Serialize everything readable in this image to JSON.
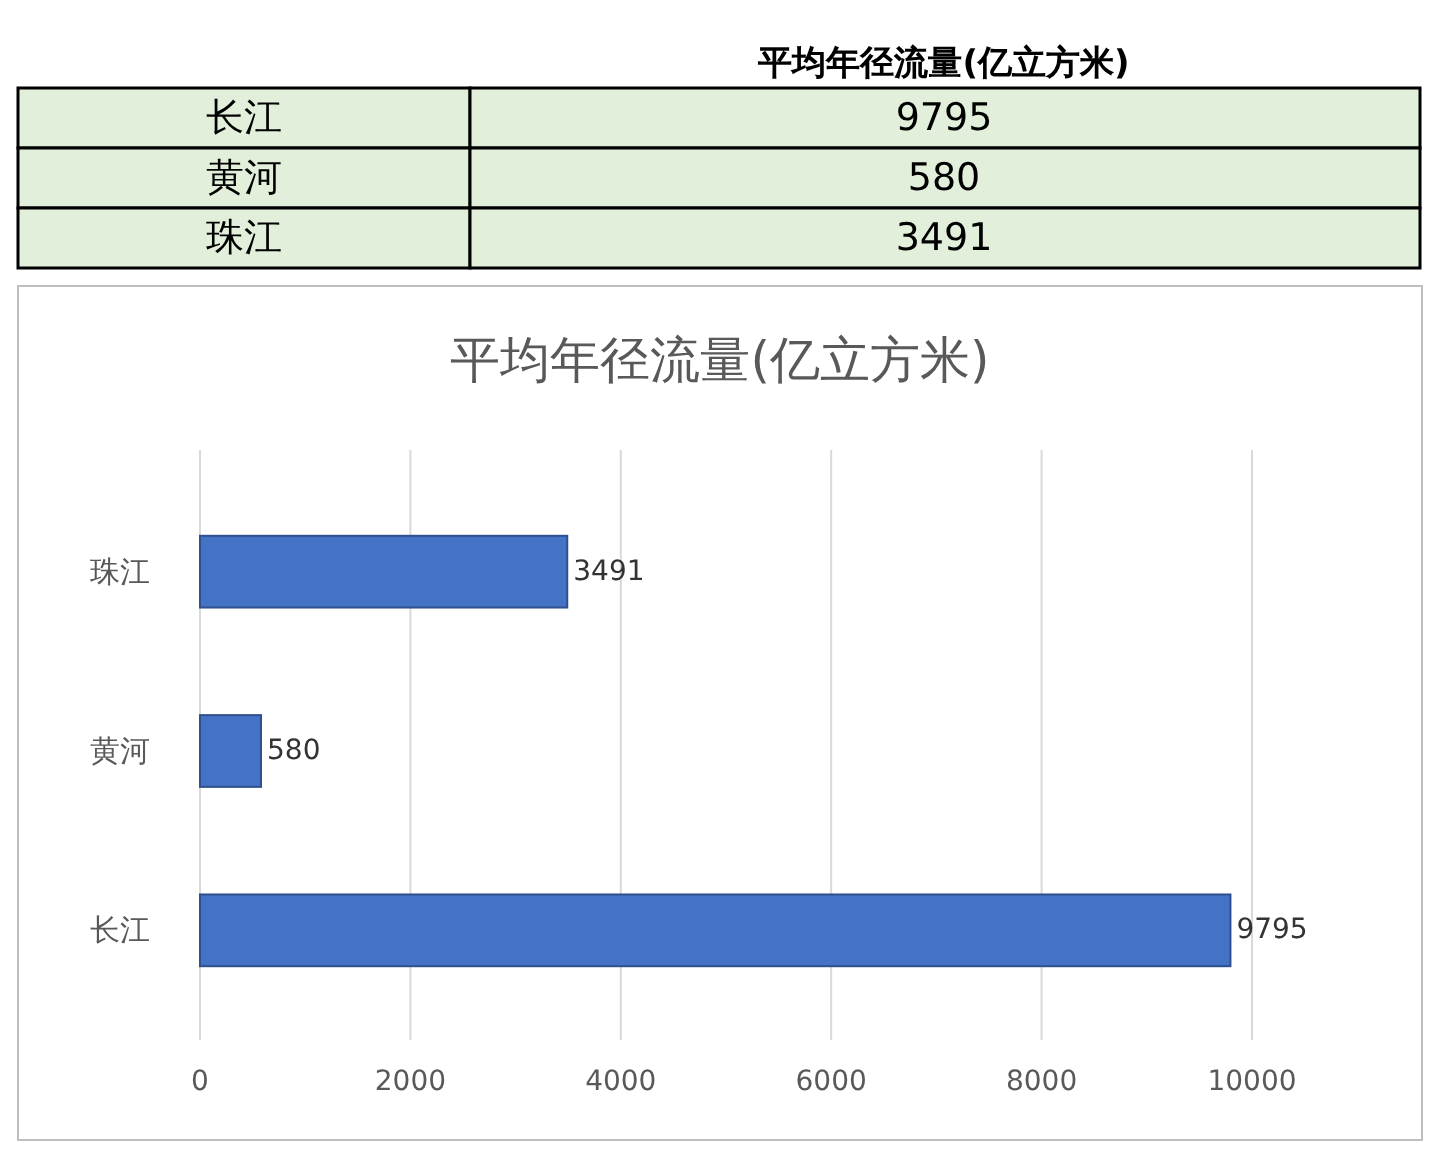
{
  "chart_data": [
    {
      "type": "other",
      "title": "平均年径流量(亿立方米)",
      "categories": [
        "长江",
        "黄河",
        "珠江"
      ],
      "values": [
        9795,
        580,
        3491
      ],
      "color": "#e2efda",
      "data_labels": true
    },
    {
      "type": "bar",
      "orientation": "horizontal",
      "title": "平均年径流量(亿立方米)",
      "categories": [
        "珠江",
        "黄河",
        "长江"
      ],
      "values": [
        3491,
        580,
        9795
      ],
      "color": "#4472c4",
      "xlim": [
        0,
        10000
      ],
      "xticks": [
        0,
        2000,
        4000,
        6000,
        8000,
        10000
      ],
      "grid": "x",
      "data_labels": true
    }
  ]
}
